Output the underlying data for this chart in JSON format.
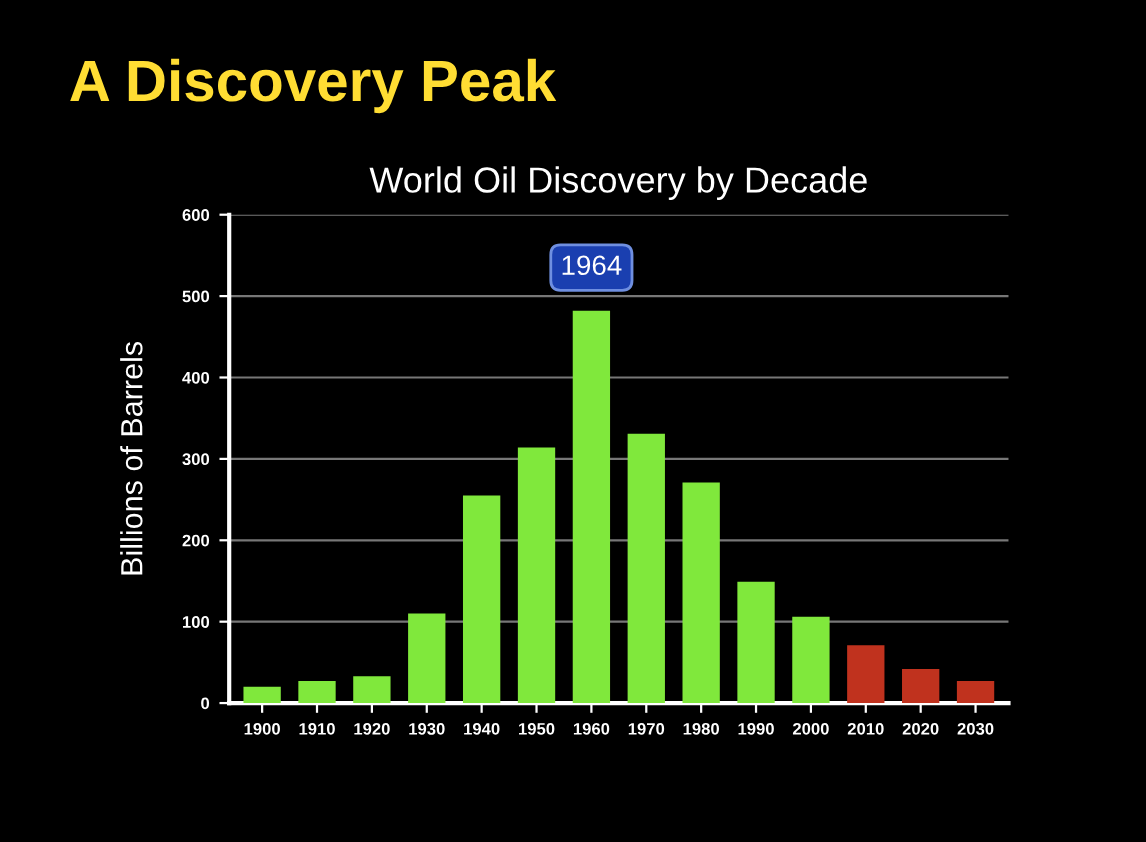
{
  "chart_data": {
    "type": "bar",
    "title": "A Discovery Peak",
    "subtitle": "World Oil Discovery by Decade",
    "ylabel": "Billions of Barrels",
    "categories": [
      "1900",
      "1910",
      "1920",
      "1930",
      "1940",
      "1950",
      "1960",
      "1970",
      "1980",
      "1990",
      "2000",
      "2010",
      "2020",
      "2030"
    ],
    "values": [
      20,
      27,
      33,
      110,
      255,
      314,
      482,
      331,
      271,
      149,
      106,
      71,
      42,
      27
    ],
    "colors": [
      "#80e83c",
      "#80e83c",
      "#80e83c",
      "#80e83c",
      "#80e83c",
      "#80e83c",
      "#80e83c",
      "#80e83c",
      "#80e83c",
      "#80e83c",
      "#80e83c",
      "#c0321e",
      "#c0321e",
      "#c0321e"
    ],
    "ylim": [
      0,
      600
    ],
    "yticks": [
      0,
      100,
      200,
      300,
      400,
      500,
      600
    ],
    "grid": "y",
    "annotations": [
      {
        "text": "1964",
        "x": "1960",
        "y": 535
      }
    ]
  }
}
